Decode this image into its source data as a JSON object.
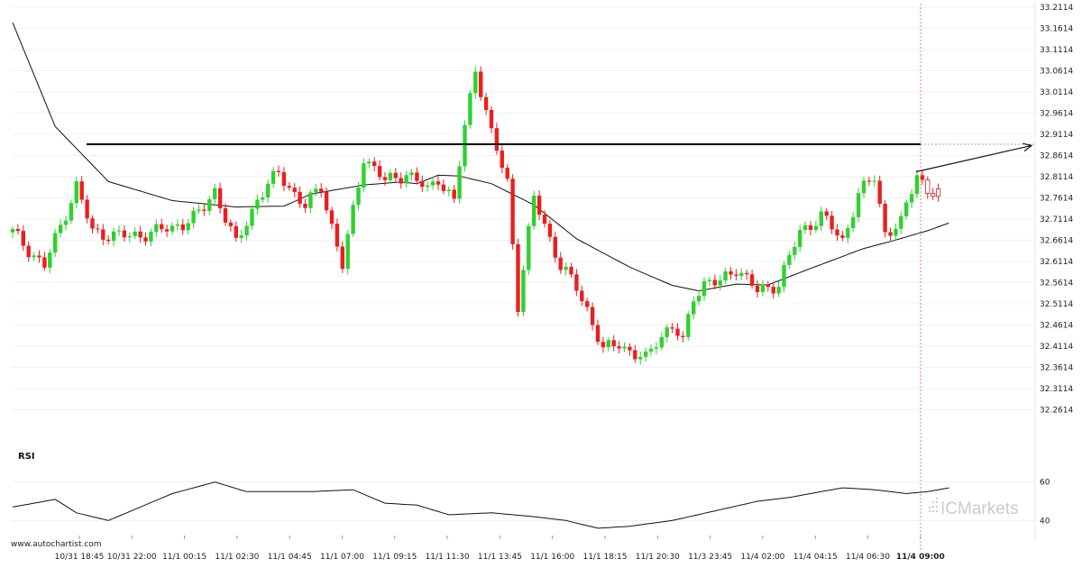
{
  "chart_data": {
    "type": "candlestick",
    "price_axis": {
      "ylim": [
        32.2114,
        33.2114
      ],
      "ticks": [
        "33.2114",
        "33.1614",
        "33.1114",
        "33.0614",
        "33.0114",
        "32.9614",
        "32.9114",
        "32.8614",
        "32.8114",
        "32.7614",
        "32.7114",
        "32.6614",
        "32.6114",
        "32.5614",
        "32.5114",
        "32.4614",
        "32.4114",
        "32.3614",
        "32.3114",
        "32.2614"
      ]
    },
    "x_axis": {
      "ticks": [
        "10/31 18:45",
        "10/31 22:00",
        "11/1 00:15",
        "11/1 02:30",
        "11/1 04:45",
        "11/1 07:00",
        "11/1 09:15",
        "11/1 11:30",
        "11/1 13:45",
        "11/1 16:00",
        "11/1 18:15",
        "11/1 20:30",
        "11/3 23:45",
        "11/4 02:00",
        "11/4 04:15",
        "11/4 06:30",
        "11/4 09:00"
      ],
      "highlight": "11/4 09:00"
    },
    "resistance_level": 32.888,
    "projection": {
      "from": [
        170,
        32.823
      ],
      "to": [
        190,
        32.885
      ]
    },
    "ma_anchors": [
      [
        0,
        33.175
      ],
      [
        8,
        32.93
      ],
      [
        18,
        32.8
      ],
      [
        30,
        32.755
      ],
      [
        42,
        32.74
      ],
      [
        51,
        32.742
      ],
      [
        56,
        32.77
      ],
      [
        66,
        32.792
      ],
      [
        73,
        32.799
      ],
      [
        76,
        32.795
      ],
      [
        80,
        32.815
      ],
      [
        84,
        32.813
      ],
      [
        90,
        32.795
      ],
      [
        98,
        32.745
      ],
      [
        106,
        32.665
      ],
      [
        116,
        32.598
      ],
      [
        124,
        32.555
      ],
      [
        129,
        32.542
      ],
      [
        136,
        32.558
      ],
      [
        142,
        32.556
      ],
      [
        150,
        32.595
      ],
      [
        160,
        32.642
      ],
      [
        166,
        32.662
      ],
      [
        172,
        32.684
      ],
      [
        176,
        32.702
      ]
    ],
    "candle_anchors": [
      [
        0,
        32.68
      ],
      [
        6,
        32.6
      ],
      [
        12,
        32.79
      ],
      [
        15,
        32.68
      ],
      [
        22,
        32.67
      ],
      [
        30,
        32.69
      ],
      [
        35,
        32.72
      ],
      [
        38,
        32.78
      ],
      [
        42,
        32.65
      ],
      [
        46,
        32.76
      ],
      [
        50,
        32.82
      ],
      [
        55,
        32.74
      ],
      [
        58,
        32.79
      ],
      [
        62,
        32.6
      ],
      [
        66,
        32.86
      ],
      [
        70,
        32.8
      ],
      [
        74,
        32.82
      ],
      [
        78,
        32.78
      ],
      [
        80,
        32.81
      ],
      [
        83,
        32.75
      ],
      [
        85,
        32.93
      ],
      [
        87,
        33.07
      ],
      [
        90,
        32.91
      ],
      [
        93,
        32.8
      ],
      [
        95,
        32.51
      ],
      [
        98,
        32.76
      ],
      [
        100,
        32.7
      ],
      [
        103,
        32.6
      ],
      [
        106,
        32.55
      ],
      [
        108,
        32.5
      ],
      [
        111,
        32.4
      ],
      [
        114,
        32.42
      ],
      [
        117,
        32.39
      ],
      [
        119,
        32.38
      ],
      [
        122,
        32.44
      ],
      [
        124,
        32.46
      ],
      [
        126,
        32.42
      ],
      [
        128,
        32.53
      ],
      [
        130,
        32.56
      ],
      [
        133,
        32.56
      ],
      [
        136,
        32.6
      ],
      [
        140,
        32.54
      ],
      [
        144,
        32.56
      ],
      [
        148,
        32.68
      ],
      [
        152,
        32.72
      ],
      [
        156,
        32.66
      ],
      [
        159,
        32.77
      ],
      [
        162,
        32.81
      ],
      [
        164,
        32.68
      ],
      [
        167,
        32.7
      ],
      [
        170,
        32.82
      ],
      [
        172,
        32.78
      ],
      [
        174,
        32.77
      ]
    ],
    "rsi": {
      "title": "RSI",
      "ylim": [
        35,
        65
      ],
      "ticks": [
        "60",
        "40"
      ],
      "anchors": [
        [
          0,
          47
        ],
        [
          8,
          51
        ],
        [
          12,
          44
        ],
        [
          18,
          40
        ],
        [
          30,
          54
        ],
        [
          38,
          60
        ],
        [
          44,
          55
        ],
        [
          50,
          55
        ],
        [
          56,
          55
        ],
        [
          64,
          56
        ],
        [
          70,
          49
        ],
        [
          76,
          48
        ],
        [
          82,
          43
        ],
        [
          90,
          44
        ],
        [
          98,
          42
        ],
        [
          104,
          40
        ],
        [
          110,
          36
        ],
        [
          116,
          37
        ],
        [
          124,
          40
        ],
        [
          132,
          45
        ],
        [
          140,
          50
        ],
        [
          146,
          52
        ],
        [
          150,
          54
        ],
        [
          156,
          57
        ],
        [
          162,
          56
        ],
        [
          168,
          54
        ],
        [
          172,
          55
        ],
        [
          176,
          57
        ]
      ]
    }
  },
  "footer": {
    "url": "www.autochartist.com"
  },
  "watermark": {
    "brand": "ICMarkets"
  }
}
